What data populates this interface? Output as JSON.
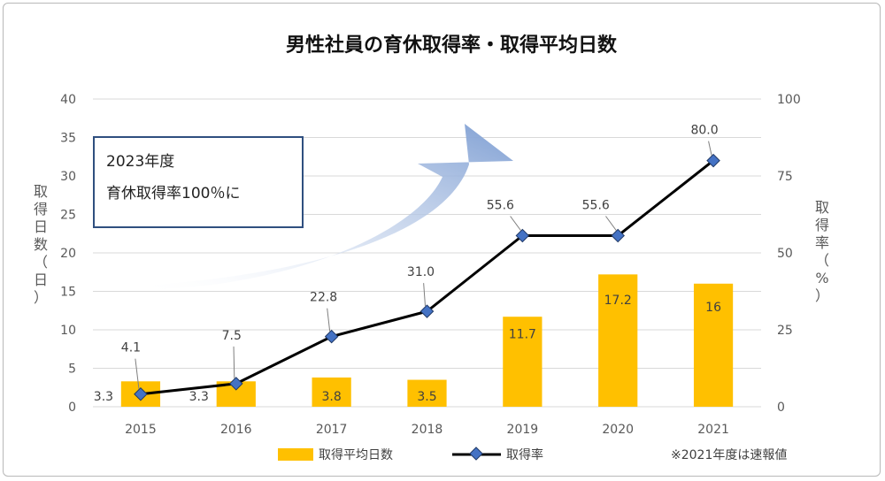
{
  "chart_data": {
    "type": "bar+line",
    "title": "男性社員の育休取得率・取得平均日数",
    "categories": [
      "2015",
      "2016",
      "2017",
      "2018",
      "2019",
      "2020",
      "2021"
    ],
    "series": [
      {
        "name": "取得平均日数",
        "type": "bar",
        "axis": "left",
        "color": "#FFC000",
        "values": [
          3.3,
          3.3,
          3.8,
          3.5,
          11.7,
          17.2,
          16
        ],
        "labels": [
          "3.3",
          "3.3",
          "3.8",
          "3.5",
          "11.7",
          "17.2",
          "16"
        ]
      },
      {
        "name": "取得率",
        "type": "line",
        "axis": "right",
        "color": "#000000",
        "marker_color": "#4472C4",
        "values": [
          4.1,
          7.5,
          22.8,
          31.0,
          55.6,
          55.6,
          80.0
        ],
        "labels": [
          "4.1",
          "7.5",
          "22.8",
          "31.0",
          "55.6",
          "55.6",
          "80.0"
        ]
      }
    ],
    "y_left": {
      "label": "取得日数（日）",
      "label_chars": [
        "取",
        "得",
        "日",
        "数",
        "（",
        "日",
        "）"
      ],
      "ylim": [
        0,
        40
      ],
      "ticks": [
        "0",
        "5",
        "10",
        "15",
        "20",
        "25",
        "30",
        "35",
        "40"
      ]
    },
    "y_right": {
      "label": "取得率（%）",
      "label_chars": [
        "取",
        "得",
        "率",
        "（",
        "%",
        "）"
      ],
      "ylim": [
        0,
        100
      ],
      "ticks": [
        "0",
        "25",
        "50",
        "75",
        "100"
      ]
    },
    "grid": true,
    "legend_position": "bottom"
  },
  "callout": {
    "line1": "2023年度",
    "line2": "育休取得率100％に"
  },
  "footnote": "※2021年度は速報値"
}
